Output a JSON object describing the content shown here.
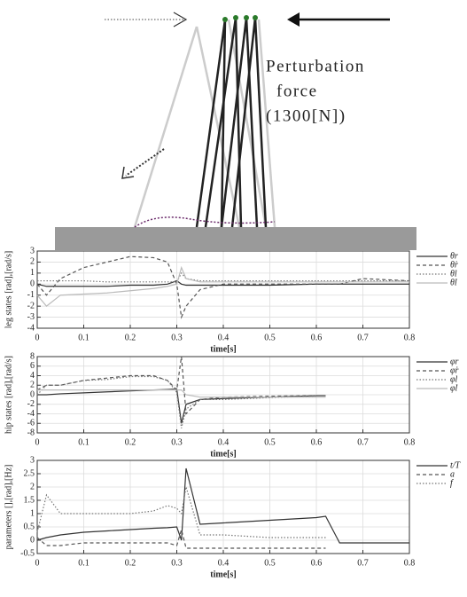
{
  "annotation": [
    "Perturbation",
    "force",
    "(1300[N])"
  ],
  "chart_data": [
    {
      "type": "line",
      "y_label": "leg states [rad],[rad/s]",
      "x_label": "time[s]",
      "x": [
        0,
        0.02,
        0.05,
        0.1,
        0.15,
        0.2,
        0.25,
        0.28,
        0.3,
        0.31,
        0.32,
        0.35,
        0.4,
        0.5,
        0.6,
        0.62,
        0.65,
        0.7,
        0.8
      ],
      "xlim": [
        0,
        0.8
      ],
      "xticks": [
        0,
        0.1,
        0.2,
        0.3,
        0.4,
        0.5,
        0.6,
        0.7,
        0.8
      ],
      "ylim": [
        -4,
        3
      ],
      "yticks": [
        -4,
        -3,
        -2,
        -1,
        0,
        1,
        2,
        3
      ],
      "grid": true,
      "legend": "right",
      "series": [
        {
          "name": "θr",
          "color": "#333333",
          "style": "solid",
          "values": [
            0,
            -0.2,
            -0.2,
            -0.2,
            -0.2,
            -0.1,
            -0.1,
            0,
            0.3,
            0,
            -0.1,
            -0.1,
            -0.1,
            -0.1,
            0,
            0,
            0,
            0,
            0
          ]
        },
        {
          "name": "θ̇r",
          "color": "#555555",
          "style": "dashed",
          "values": [
            0,
            -1,
            0.5,
            1.5,
            2,
            2.5,
            2.4,
            2,
            0,
            -3,
            -2,
            -0.5,
            0,
            0,
            0,
            0,
            0,
            0.5,
            0.3
          ]
        },
        {
          "name": "θl",
          "color": "#777777",
          "style": "dotted",
          "values": [
            0.3,
            0.3,
            0.3,
            0.3,
            0.2,
            0.2,
            0.2,
            0.2,
            0.2,
            1,
            0.5,
            0.3,
            0.3,
            0.3,
            0.3,
            0.3,
            0.3,
            0.3,
            0.3
          ]
        },
        {
          "name": "θ̇l",
          "color": "#bbbbbb",
          "style": "solid",
          "values": [
            -1,
            -2,
            -1,
            -0.9,
            -0.8,
            -0.6,
            -0.4,
            -0.2,
            0,
            1.5,
            0.5,
            0.2,
            0.2,
            0.2,
            0.2,
            0.2,
            0.2,
            0.2,
            0.2
          ]
        }
      ]
    },
    {
      "type": "line",
      "y_label": "hip states [rad],[rad/s]",
      "x_label": "time[s]",
      "x": [
        0,
        0.02,
        0.05,
        0.1,
        0.15,
        0.2,
        0.25,
        0.28,
        0.3,
        0.31,
        0.32,
        0.35,
        0.4,
        0.5,
        0.6,
        0.62,
        0.65,
        0.7,
        0.8
      ],
      "xlim": [
        0,
        0.8
      ],
      "xticks": [
        0,
        0.1,
        0.2,
        0.3,
        0.4,
        0.5,
        0.6,
        0.7,
        0.8
      ],
      "ylim": [
        -8,
        8
      ],
      "yticks": [
        -8,
        -6,
        -4,
        -2,
        0,
        2,
        4,
        6,
        8
      ],
      "grid": true,
      "legend": "right",
      "series": [
        {
          "name": "φr",
          "color": "#333333",
          "style": "solid",
          "values": [
            0,
            0,
            0.2,
            0.4,
            0.6,
            0.8,
            1,
            1.1,
            1.2,
            -6,
            -2,
            -1,
            -0.8,
            -0.5,
            -0.2,
            -0.2,
            null,
            null,
            null
          ]
        },
        {
          "name": "φ̇r",
          "color": "#555555",
          "style": "dashed",
          "values": [
            1,
            2,
            2,
            3,
            3.5,
            4,
            4,
            3,
            1,
            8,
            -4,
            -1,
            -0.5,
            -0.3,
            -0.2,
            null,
            null,
            null,
            null
          ]
        },
        {
          "name": "φl",
          "color": "#777777",
          "style": "dotted",
          "values": [
            0,
            2,
            2,
            3,
            3.2,
            3.8,
            3.8,
            3,
            0.5,
            -7,
            -3,
            -1,
            -1,
            -0.6,
            -0.3,
            null,
            null,
            null,
            null
          ]
        },
        {
          "name": "φ̇l",
          "color": "#bbbbbb",
          "style": "solid",
          "values": [
            1,
            1,
            1,
            1,
            1,
            1,
            1,
            1,
            1,
            1,
            0,
            -0.5,
            -0.5,
            -0.5,
            -0.5,
            -0.5,
            null,
            null,
            null
          ]
        }
      ]
    },
    {
      "type": "line",
      "y_label": "parameters [],[rad],[Hz]",
      "x_label": "time[s]",
      "x": [
        0,
        0.02,
        0.05,
        0.1,
        0.15,
        0.2,
        0.25,
        0.28,
        0.3,
        0.31,
        0.32,
        0.35,
        0.4,
        0.5,
        0.6,
        0.62,
        0.65,
        0.7,
        0.8
      ],
      "xlim": [
        0,
        0.8
      ],
      "xticks": [
        0,
        0.1,
        0.2,
        0.3,
        0.4,
        0.5,
        0.6,
        0.7,
        0.8
      ],
      "ylim": [
        -0.5,
        3
      ],
      "yticks": [
        -0.5,
        0,
        0.5,
        1,
        1.5,
        2,
        2.5,
        3
      ],
      "grid": true,
      "legend": "right",
      "series": [
        {
          "name": "t/T",
          "color": "#333333",
          "style": "solid",
          "values": [
            0,
            0.1,
            0.2,
            0.3,
            0.35,
            0.4,
            0.45,
            0.47,
            0.5,
            0,
            2.7,
            0.6,
            0.65,
            0.75,
            0.85,
            0.9,
            -0.1,
            -0.1,
            -0.1
          ]
        },
        {
          "name": "a",
          "color": "#555555",
          "style": "dashed",
          "values": [
            0.1,
            -0.2,
            -0.2,
            -0.1,
            -0.1,
            -0.1,
            -0.1,
            -0.1,
            -0.2,
            0.4,
            -0.3,
            -0.3,
            -0.3,
            -0.3,
            -0.3,
            -0.3,
            null,
            null,
            null
          ]
        },
        {
          "name": "f",
          "color": "#777777",
          "style": "dotted",
          "values": [
            0.3,
            1.7,
            1,
            1,
            1,
            1,
            1.1,
            1.3,
            1.2,
            1,
            2,
            0.2,
            0.2,
            0.1,
            0.1,
            0.1,
            null,
            null,
            null
          ]
        }
      ]
    }
  ]
}
